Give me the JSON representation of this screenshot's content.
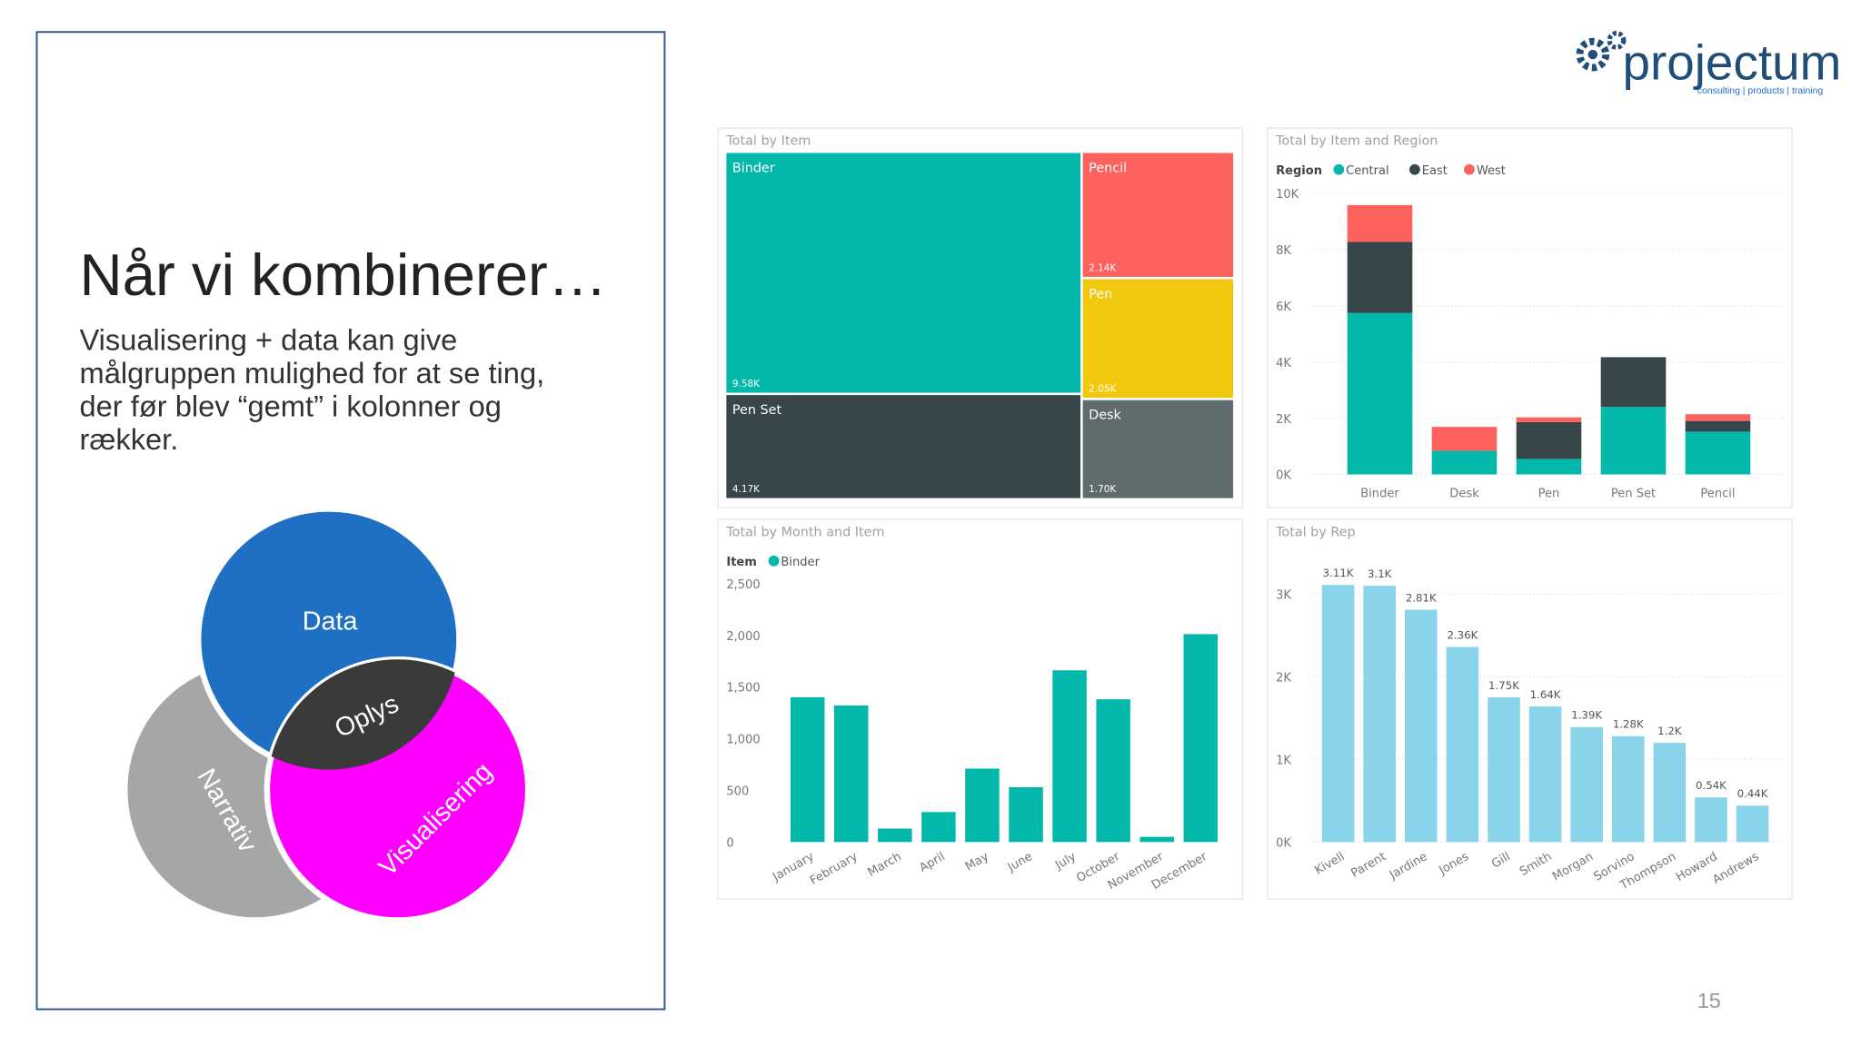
{
  "slide": {
    "title": "Når vi kombinerer…",
    "body": [
      "Visualisering + data kan give",
      "målgruppen mulighed  for at se ting,",
      "der før blev “gemt” i kolonner og",
      "rækker."
    ],
    "venn": {
      "top": "Data",
      "center": "Oplys",
      "left": "Narrativ",
      "right": "Visualisering"
    },
    "logo": {
      "name": "projectum",
      "tagline": "consulting | products | training"
    },
    "page_number": "15"
  },
  "chart_data": [
    {
      "type": "treemap",
      "title": "Total by Item",
      "categories": [
        "Binder",
        "Pen Set",
        "Pencil",
        "Pen",
        "Desk"
      ],
      "values": [
        9.58,
        4.17,
        2.14,
        2.05,
        1.7
      ],
      "value_labels": [
        "9.58K",
        "4.17K",
        "2.14K",
        "2.05K",
        "1.70K"
      ],
      "colors": [
        "#01b8aa",
        "#374649",
        "#fd625e",
        "#f2c80f",
        "#5f6b6d"
      ]
    },
    {
      "type": "stacked_bar",
      "title": "Total by Item and Region",
      "legend_title": "Region",
      "categories": [
        "Binder",
        "Desk",
        "Pen",
        "Pen Set",
        "Pencil"
      ],
      "series": [
        {
          "name": "Central",
          "color": "#01b8aa",
          "values": [
            5740,
            840,
            550,
            2400,
            1520
          ]
        },
        {
          "name": "East",
          "color": "#374649",
          "values": [
            2530,
            0,
            1310,
            1770,
            380
          ]
        },
        {
          "name": "West",
          "color": "#fd625e",
          "values": [
            1310,
            850,
            170,
            0,
            240
          ]
        }
      ],
      "ylim": [
        0,
        10000
      ],
      "yticks": [
        {
          "value": 0,
          "label": "0K"
        },
        {
          "value": 2000,
          "label": "2K"
        },
        {
          "value": 4000,
          "label": "4K"
        },
        {
          "value": 6000,
          "label": "6K"
        },
        {
          "value": 8000,
          "label": "8K"
        },
        {
          "value": 10000,
          "label": "10K"
        }
      ],
      "grid": true
    },
    {
      "type": "bar",
      "title": "Total by Month and Item",
      "legend_title": "Item",
      "categories": [
        "January",
        "February",
        "March",
        "April",
        "May",
        "June",
        "July",
        "October",
        "November",
        "December"
      ],
      "series": [
        {
          "name": "Binder",
          "color": "#01b8aa",
          "values": [
            1400,
            1320,
            130,
            290,
            710,
            530,
            1660,
            1380,
            50,
            2010
          ]
        }
      ],
      "ylim": [
        0,
        2500
      ],
      "yticks": [
        0,
        500,
        {
          "value": 1000,
          "label": "1,000"
        },
        {
          "value": 1500,
          "label": "1,500"
        },
        {
          "value": 2000,
          "label": "2,000"
        },
        {
          "value": 2500,
          "label": "2,500"
        }
      ],
      "grid": false
    },
    {
      "type": "bar",
      "title": "Total by Rep",
      "categories": [
        "Kivell",
        "Parent",
        "Jardine",
        "Jones",
        "Gill",
        "Smith",
        "Morgan",
        "Sorvino",
        "Thompson",
        "Howard",
        "Andrews"
      ],
      "values": [
        3110,
        3100,
        2810,
        2360,
        1750,
        1640,
        1390,
        1280,
        1200,
        540,
        440
      ],
      "value_labels": [
        "3.11K",
        "3.1K",
        "2.81K",
        "2.36K",
        "1.75K",
        "1.64K",
        "1.39K",
        "1.28K",
        "1.2K",
        "0.54K",
        "0.44K"
      ],
      "color": "#8ad4eb",
      "ylim": [
        0,
        3300
      ],
      "yticks": [
        {
          "value": 0,
          "label": "0K"
        },
        {
          "value": 1000,
          "label": "1K"
        },
        {
          "value": 2000,
          "label": "2K"
        },
        {
          "value": 3000,
          "label": "3K"
        }
      ],
      "grid": true
    }
  ]
}
